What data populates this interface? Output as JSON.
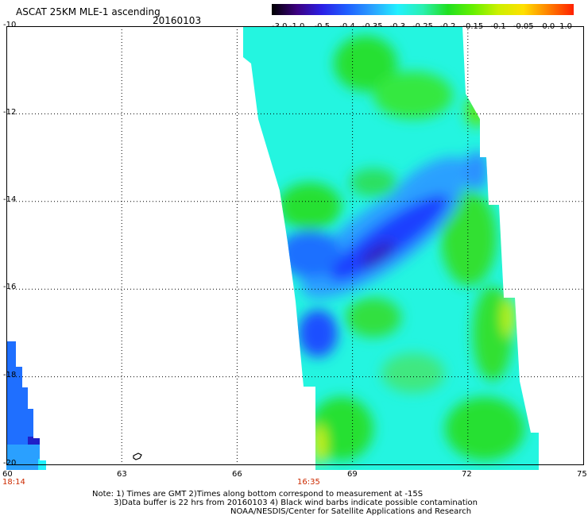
{
  "header": {
    "title": "ASCAT 25KM MLE-1 ascending",
    "date": "20160103"
  },
  "colorbar": {
    "labels": [
      "-3.0",
      "-1.0",
      "-0.5",
      "-0.4",
      "-0.35",
      "-0.3",
      "-0.25",
      "-0.2",
      "-0.15",
      "-0.1",
      "-0.05",
      "0.0",
      "1.0"
    ],
    "colors": [
      "#000000",
      "#3c0080",
      "#2a1fe6",
      "#1f5fff",
      "#2aa0ff",
      "#22f0ff",
      "#2af0b0",
      "#20e020",
      "#66f000",
      "#ccf000",
      "#ffe000",
      "#ff8000",
      "#ff2000"
    ]
  },
  "axes": {
    "lat_labels": [
      "-10",
      "-12",
      "-14",
      "-16",
      "-18",
      "-20"
    ],
    "lon_labels": [
      "60",
      "63",
      "66",
      "69",
      "72",
      "75"
    ],
    "time_labels": [
      "18:14",
      "16:35"
    ]
  },
  "chart_data": {
    "type": "heatmap",
    "title": "ASCAT 25KM MLE-1 ascending",
    "date": "20160103",
    "lat_range": [
      -20,
      -10
    ],
    "lon_range": [
      60,
      75
    ],
    "grid": true,
    "value_scale": [
      -3.0,
      -1.0,
      -0.5,
      -0.4,
      -0.35,
      -0.3,
      -0.25,
      -0.2,
      -0.15,
      -0.1,
      -0.05,
      0.0,
      1.0
    ],
    "swaths": [
      {
        "time": "16:35",
        "lon_range": [
          66.2,
          74.0
        ],
        "lat_range": [
          -20,
          -10
        ]
      },
      {
        "time": "18:14",
        "lon_range": [
          60,
          61.0
        ],
        "lat_range": [
          -20,
          -17.3
        ]
      }
    ]
  },
  "notes": {
    "line1": "Note: 1) Times are GMT 2)Times along bottom correspond to measurement at -15S",
    "line2": "3)Data buffer is 22 hrs from 20160103 4) Black wind barbs indicate possible contamination",
    "line3": "NOAA/NESDIS/Center for Satellite Applications and Research"
  }
}
